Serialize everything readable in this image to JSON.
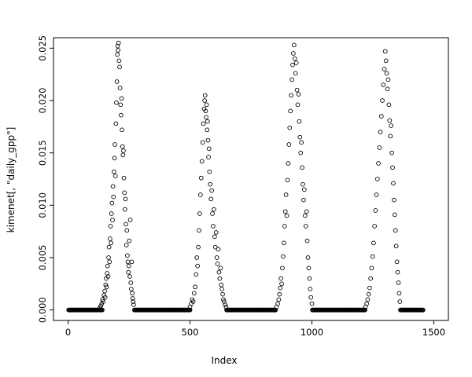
{
  "figure": {
    "background": "#ffffff",
    "foreground": "#000000"
  },
  "chart_data": {
    "type": "scatter",
    "title": "",
    "xlabel": "Index",
    "ylabel": "kimenet[, \"daily_gpp\"]",
    "marker": "open-circle",
    "marker_color": "#000000",
    "grid": false,
    "legend": null,
    "xlim": [
      0,
      1500
    ],
    "ylim": [
      0,
      0.025
    ],
    "x_ticks": [
      {
        "v": 0,
        "label": "0"
      },
      {
        "v": 500,
        "label": "500"
      },
      {
        "v": 1000,
        "label": "1000"
      },
      {
        "v": 1500,
        "label": "1500"
      }
    ],
    "y_ticks": [
      {
        "v": 0.0,
        "label": "0.000"
      },
      {
        "v": 0.005,
        "label": "0.005"
      },
      {
        "v": 0.01,
        "label": "0.010"
      },
      {
        "v": 0.015,
        "label": "0.015"
      },
      {
        "v": 0.02,
        "label": "0.020"
      },
      {
        "v": 0.025,
        "label": "0.025"
      }
    ],
    "baseline_zero_segments": [
      [
        2,
        140
      ],
      [
        272,
        500
      ],
      [
        650,
        852
      ],
      [
        1002,
        1218
      ],
      [
        1363,
        1458
      ]
    ],
    "points": [
      [
        130,
        0.0002
      ],
      [
        134,
        0.0004
      ],
      [
        138,
        0.0006
      ],
      [
        141,
        0.001
      ],
      [
        144,
        0.0008
      ],
      [
        147,
        0.0014
      ],
      [
        150,
        0.0018
      ],
      [
        152,
        0.0012
      ],
      [
        154,
        0.0024
      ],
      [
        156,
        0.003
      ],
      [
        158,
        0.0022
      ],
      [
        160,
        0.0035
      ],
      [
        162,
        0.0042
      ],
      [
        164,
        0.0032
      ],
      [
        166,
        0.005
      ],
      [
        168,
        0.006
      ],
      [
        170,
        0.0046
      ],
      [
        172,
        0.0068
      ],
      [
        174,
        0.008
      ],
      [
        176,
        0.0064
      ],
      [
        178,
        0.0092
      ],
      [
        180,
        0.0102
      ],
      [
        182,
        0.0086
      ],
      [
        184,
        0.0118
      ],
      [
        186,
        0.0108
      ],
      [
        188,
        0.0132
      ],
      [
        190,
        0.0145
      ],
      [
        192,
        0.0158
      ],
      [
        194,
        0.0128
      ],
      [
        196,
        0.0178
      ],
      [
        198,
        0.0198
      ],
      [
        200,
        0.0218
      ],
      [
        202,
        0.0244
      ],
      [
        203,
        0.0252
      ],
      [
        205,
        0.0248
      ],
      [
        207,
        0.0255
      ],
      [
        209,
        0.0238
      ],
      [
        211,
        0.0232
      ],
      [
        213,
        0.0212
      ],
      [
        215,
        0.0196
      ],
      [
        217,
        0.0186
      ],
      [
        219,
        0.0202
      ],
      [
        221,
        0.0172
      ],
      [
        223,
        0.0156
      ],
      [
        225,
        0.0148
      ],
      [
        227,
        0.0152
      ],
      [
        229,
        0.0126
      ],
      [
        231,
        0.0112
      ],
      [
        233,
        0.0096
      ],
      [
        235,
        0.0106
      ],
      [
        237,
        0.0082
      ],
      [
        239,
        0.0062
      ],
      [
        241,
        0.0076
      ],
      [
        243,
        0.0052
      ],
      [
        245,
        0.0046
      ],
      [
        247,
        0.0036
      ],
      [
        249,
        0.0042
      ],
      [
        251,
        0.0066
      ],
      [
        253,
        0.0032
      ],
      [
        255,
        0.0086
      ],
      [
        257,
        0.0026
      ],
      [
        259,
        0.002
      ],
      [
        261,
        0.0046
      ],
      [
        263,
        0.0016
      ],
      [
        265,
        0.0011
      ],
      [
        267,
        0.0008
      ],
      [
        269,
        0.0005
      ],
      [
        500,
        0.0003
      ],
      [
        505,
        0.0006
      ],
      [
        509,
        0.001
      ],
      [
        513,
        0.0008
      ],
      [
        517,
        0.0016
      ],
      [
        521,
        0.0022
      ],
      [
        525,
        0.0034
      ],
      [
        528,
        0.005
      ],
      [
        531,
        0.0042
      ],
      [
        534,
        0.006
      ],
      [
        537,
        0.0076
      ],
      [
        540,
        0.0092
      ],
      [
        543,
        0.011
      ],
      [
        546,
        0.0126
      ],
      [
        549,
        0.0142
      ],
      [
        552,
        0.016
      ],
      [
        555,
        0.0178
      ],
      [
        558,
        0.0192
      ],
      [
        560,
        0.02
      ],
      [
        562,
        0.0205
      ],
      [
        564,
        0.019
      ],
      [
        566,
        0.0184
      ],
      [
        568,
        0.0196
      ],
      [
        570,
        0.0172
      ],
      [
        572,
        0.018
      ],
      [
        574,
        0.0162
      ],
      [
        576,
        0.0146
      ],
      [
        578,
        0.0154
      ],
      [
        580,
        0.0132
      ],
      [
        583,
        0.012
      ],
      [
        586,
        0.0106
      ],
      [
        589,
        0.0114
      ],
      [
        592,
        0.0092
      ],
      [
        595,
        0.008
      ],
      [
        598,
        0.0096
      ],
      [
        601,
        0.007
      ],
      [
        604,
        0.006
      ],
      [
        607,
        0.0074
      ],
      [
        610,
        0.005
      ],
      [
        613,
        0.0044
      ],
      [
        616,
        0.0058
      ],
      [
        619,
        0.0036
      ],
      [
        622,
        0.003
      ],
      [
        625,
        0.004
      ],
      [
        628,
        0.0024
      ],
      [
        631,
        0.002
      ],
      [
        634,
        0.0015
      ],
      [
        637,
        0.001
      ],
      [
        640,
        0.0008
      ],
      [
        644,
        0.0005
      ],
      [
        648,
        0.0003
      ],
      [
        855,
        0.0003
      ],
      [
        860,
        0.0006
      ],
      [
        864,
        0.001
      ],
      [
        867,
        0.0015
      ],
      [
        870,
        0.0021
      ],
      [
        873,
        0.003
      ],
      [
        876,
        0.0025
      ],
      [
        879,
        0.004
      ],
      [
        882,
        0.0051
      ],
      [
        885,
        0.0064
      ],
      [
        888,
        0.008
      ],
      [
        891,
        0.0094
      ],
      [
        894,
        0.011
      ],
      [
        897,
        0.009
      ],
      [
        900,
        0.0124
      ],
      [
        903,
        0.014
      ],
      [
        906,
        0.0158
      ],
      [
        909,
        0.0174
      ],
      [
        912,
        0.019
      ],
      [
        915,
        0.0205
      ],
      [
        918,
        0.022
      ],
      [
        921,
        0.0234
      ],
      [
        924,
        0.0245
      ],
      [
        927,
        0.0253
      ],
      [
        930,
        0.024
      ],
      [
        933,
        0.0226
      ],
      [
        936,
        0.0236
      ],
      [
        939,
        0.021
      ],
      [
        942,
        0.0196
      ],
      [
        945,
        0.0206
      ],
      [
        948,
        0.018
      ],
      [
        951,
        0.0165
      ],
      [
        954,
        0.015
      ],
      [
        957,
        0.016
      ],
      [
        960,
        0.0136
      ],
      [
        963,
        0.012
      ],
      [
        966,
        0.0105
      ],
      [
        969,
        0.0115
      ],
      [
        972,
        0.009
      ],
      [
        975,
        0.008
      ],
      [
        978,
        0.0094
      ],
      [
        981,
        0.0066
      ],
      [
        984,
        0.005
      ],
      [
        987,
        0.004
      ],
      [
        990,
        0.003
      ],
      [
        993,
        0.002
      ],
      [
        996,
        0.0012
      ],
      [
        1000,
        0.0006
      ],
      [
        1220,
        0.0003
      ],
      [
        1225,
        0.0006
      ],
      [
        1229,
        0.001
      ],
      [
        1233,
        0.0015
      ],
      [
        1237,
        0.0021
      ],
      [
        1241,
        0.003
      ],
      [
        1245,
        0.004
      ],
      [
        1249,
        0.0051
      ],
      [
        1253,
        0.0064
      ],
      [
        1257,
        0.008
      ],
      [
        1261,
        0.0095
      ],
      [
        1265,
        0.011
      ],
      [
        1269,
        0.0125
      ],
      [
        1273,
        0.014
      ],
      [
        1277,
        0.0155
      ],
      [
        1281,
        0.017
      ],
      [
        1285,
        0.0185
      ],
      [
        1289,
        0.02
      ],
      [
        1293,
        0.0215
      ],
      [
        1297,
        0.023
      ],
      [
        1301,
        0.0247
      ],
      [
        1304,
        0.0238
      ],
      [
        1307,
        0.0226
      ],
      [
        1310,
        0.0211
      ],
      [
        1313,
        0.022
      ],
      [
        1316,
        0.0196
      ],
      [
        1319,
        0.0181
      ],
      [
        1322,
        0.0166
      ],
      [
        1325,
        0.0176
      ],
      [
        1328,
        0.015
      ],
      [
        1331,
        0.0136
      ],
      [
        1334,
        0.0121
      ],
      [
        1337,
        0.0105
      ],
      [
        1340,
        0.0091
      ],
      [
        1343,
        0.0076
      ],
      [
        1346,
        0.0061
      ],
      [
        1349,
        0.0046
      ],
      [
        1352,
        0.0036
      ],
      [
        1355,
        0.0026
      ],
      [
        1358,
        0.0016
      ],
      [
        1361,
        0.0008
      ]
    ]
  }
}
